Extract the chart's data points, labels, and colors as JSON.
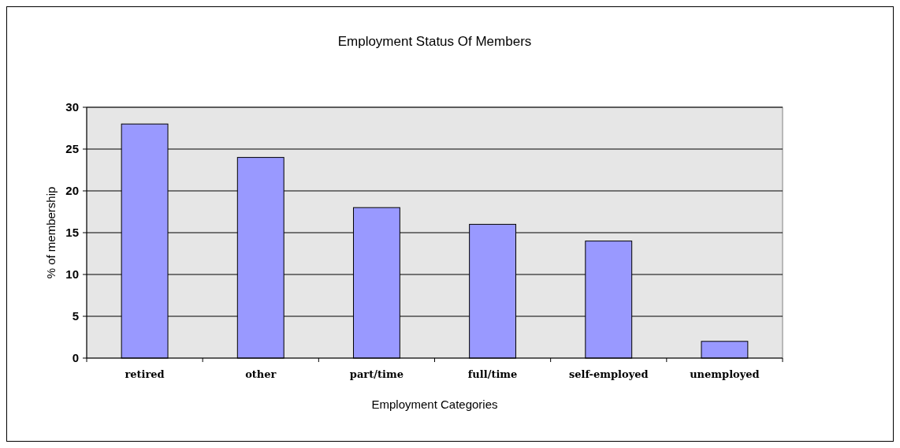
{
  "chart_data": {
    "type": "bar",
    "title": "Employment Status Of Members",
    "xlabel": "Employment Categories",
    "ylabel": "% of membership",
    "categories": [
      "retired",
      "other",
      "part/time",
      "full/time",
      "self-employed",
      "unemployed"
    ],
    "values": [
      28,
      24,
      18,
      16,
      14,
      2
    ],
    "color": "#9999ff",
    "ylim": [
      0,
      30
    ],
    "yticks": [
      0,
      5,
      10,
      15,
      20,
      25,
      30
    ],
    "grid": "y"
  }
}
